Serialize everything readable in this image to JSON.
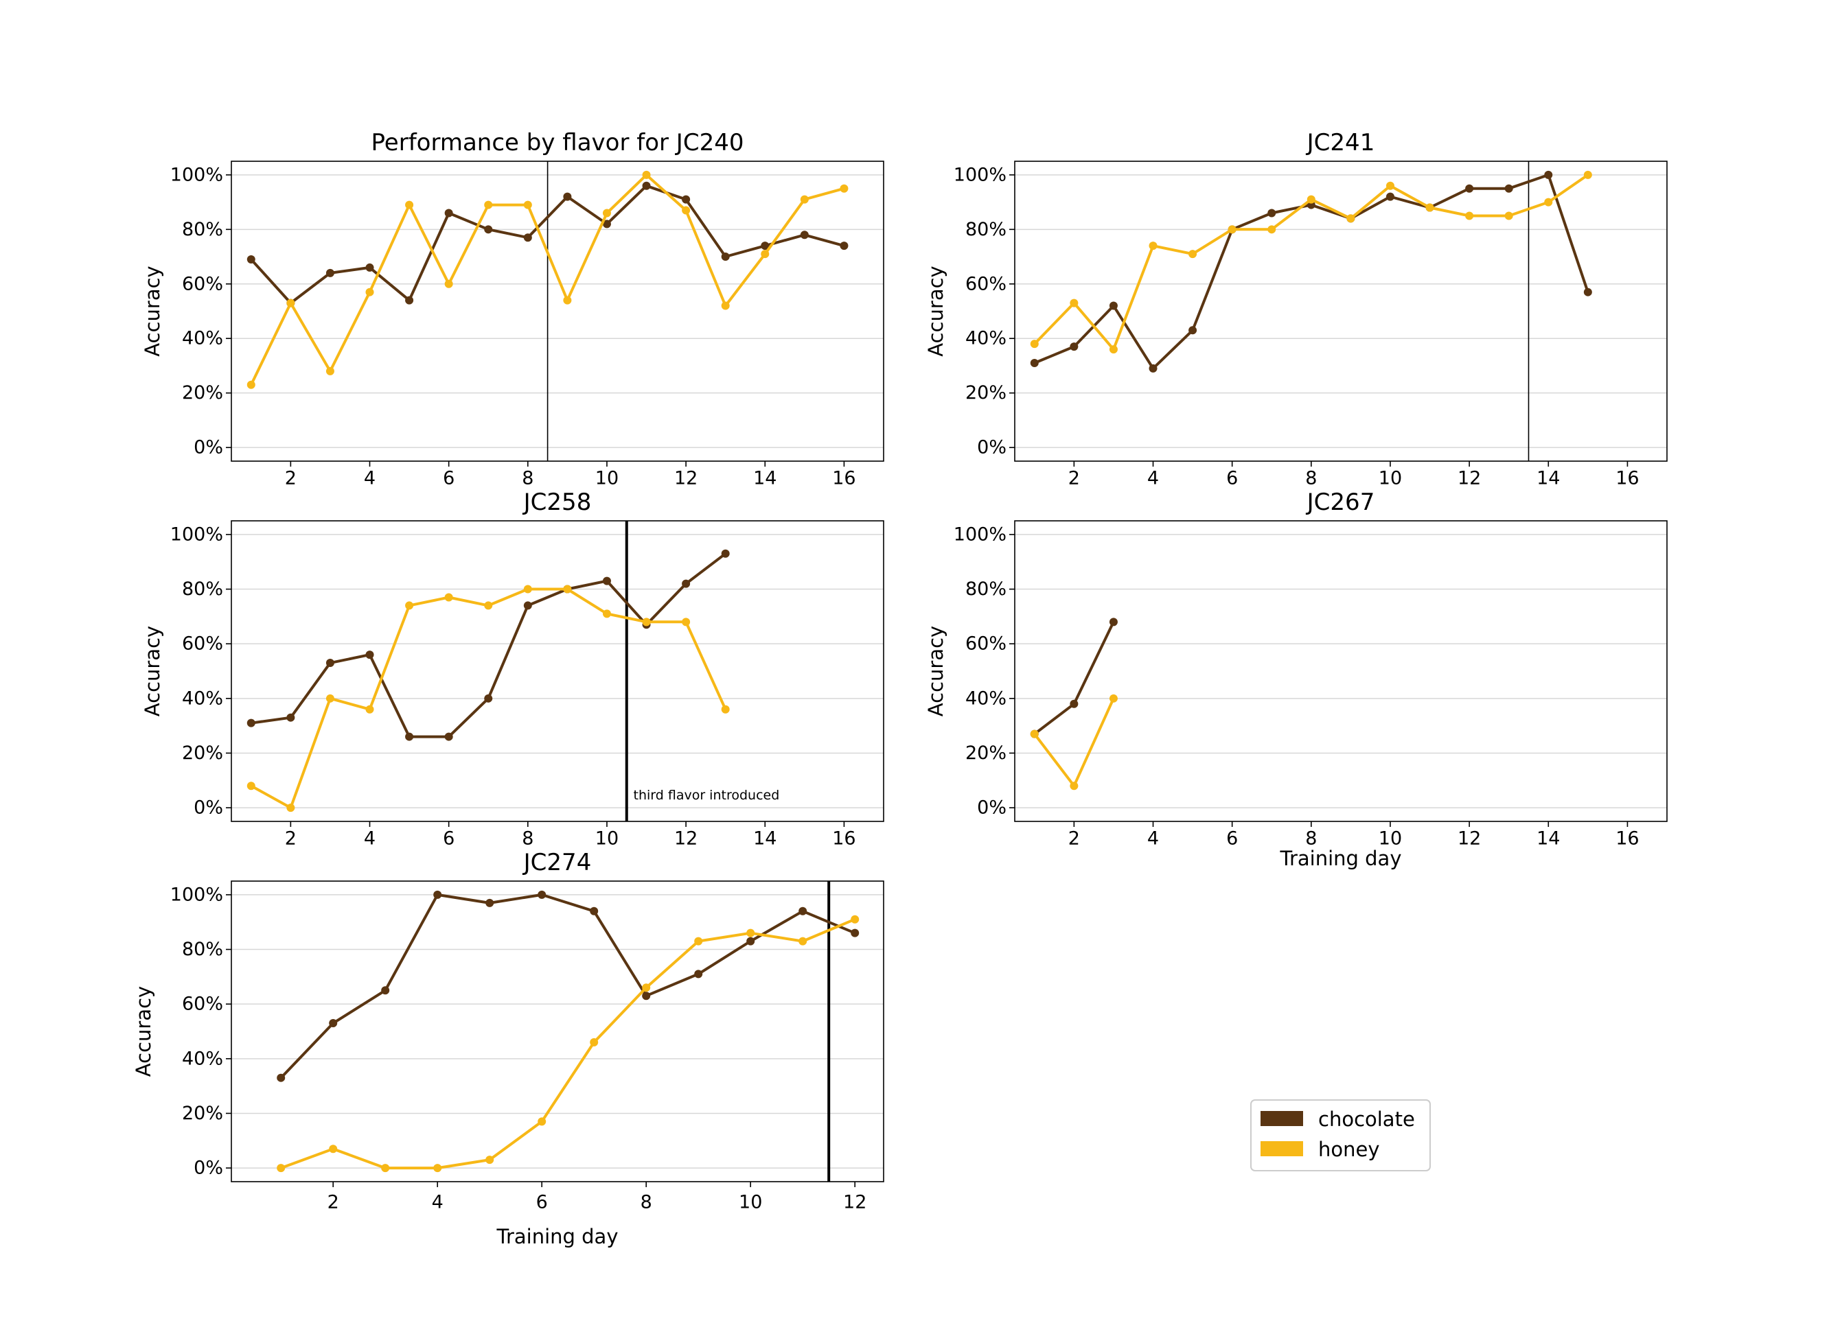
{
  "figure_title": "Performance by flavor for JC240",
  "colors": {
    "chocolate": "#5a3512",
    "honey": "#f7b817",
    "grid": "#d7d7d7"
  },
  "legend": {
    "position": "lower-right",
    "items": [
      {
        "label": "chocolate",
        "color": "#5a3512"
      },
      {
        "label": "honey",
        "color": "#f7b817"
      }
    ]
  },
  "chart_data": [
    {
      "type": "line",
      "title": "Performance by flavor for JC240",
      "xlabel": "",
      "ylabel": "Accuracy",
      "xlim": [
        0.5,
        17
      ],
      "ylim": [
        -5,
        105
      ],
      "xticks": [
        2,
        4,
        6,
        8,
        10,
        12,
        14,
        16
      ],
      "yticks": [
        0,
        20,
        40,
        60,
        80,
        100
      ],
      "ytick_labels": [
        "0%",
        "20%",
        "40%",
        "60%",
        "80%",
        "100%"
      ],
      "vline": 8.5,
      "vline_style": "thin",
      "grid": "horizontal",
      "series": [
        {
          "name": "chocolate",
          "x": [
            1,
            2,
            3,
            4,
            5,
            6,
            7,
            8,
            9,
            10,
            11,
            12,
            13,
            14,
            15,
            16
          ],
          "y": [
            69,
            53,
            64,
            66,
            54,
            86,
            80,
            77,
            92,
            82,
            96,
            91,
            70,
            74,
            78,
            74
          ]
        },
        {
          "name": "honey",
          "x": [
            1,
            2,
            3,
            4,
            5,
            6,
            7,
            8,
            9,
            10,
            11,
            12,
            13,
            14,
            15,
            16
          ],
          "y": [
            23,
            53,
            28,
            57,
            89,
            60,
            89,
            89,
            54,
            86,
            100,
            87,
            52,
            71,
            91,
            95
          ]
        }
      ]
    },
    {
      "type": "line",
      "title": "JC241",
      "xlabel": "",
      "ylabel": "Accuracy",
      "xlim": [
        0.5,
        17
      ],
      "ylim": [
        -5,
        105
      ],
      "xticks": [
        2,
        4,
        6,
        8,
        10,
        12,
        14,
        16
      ],
      "yticks": [
        0,
        20,
        40,
        60,
        80,
        100
      ],
      "ytick_labels": [
        "0%",
        "20%",
        "40%",
        "60%",
        "80%",
        "100%"
      ],
      "vline": 13.5,
      "vline_style": "thin",
      "grid": "horizontal",
      "series": [
        {
          "name": "chocolate",
          "x": [
            1,
            2,
            3,
            4,
            5,
            6,
            7,
            8,
            9,
            10,
            11,
            12,
            13,
            14,
            15
          ],
          "y": [
            31,
            37,
            52,
            29,
            43,
            80,
            86,
            89,
            84,
            92,
            88,
            95,
            95,
            100,
            57
          ]
        },
        {
          "name": "honey",
          "x": [
            1,
            2,
            3,
            4,
            5,
            6,
            7,
            8,
            9,
            10,
            11,
            12,
            13,
            14,
            15
          ],
          "y": [
            38,
            53,
            36,
            74,
            71,
            80,
            80,
            91,
            84,
            96,
            88,
            85,
            85,
            90,
            100
          ]
        }
      ]
    },
    {
      "type": "line",
      "title": "JC258",
      "xlabel": "",
      "ylabel": "Accuracy",
      "xlim": [
        0.5,
        17
      ],
      "ylim": [
        -5,
        105
      ],
      "xticks": [
        2,
        4,
        6,
        8,
        10,
        12,
        14,
        16
      ],
      "yticks": [
        0,
        20,
        40,
        60,
        80,
        100
      ],
      "ytick_labels": [
        "0%",
        "20%",
        "40%",
        "60%",
        "80%",
        "100%"
      ],
      "vline": 10.5,
      "vline_style": "thick",
      "grid": "horizontal",
      "annotation": {
        "text": "third flavor introduced",
        "x": 10.6,
        "y": 3
      },
      "series": [
        {
          "name": "chocolate",
          "x": [
            1,
            2,
            3,
            4,
            5,
            6,
            7,
            8,
            9,
            10,
            11,
            12,
            13
          ],
          "y": [
            31,
            33,
            53,
            56,
            26,
            26,
            40,
            74,
            80,
            83,
            67,
            82,
            93
          ]
        },
        {
          "name": "honey",
          "x": [
            1,
            2,
            3,
            4,
            5,
            6,
            7,
            8,
            9,
            10,
            11,
            12,
            13
          ],
          "y": [
            8,
            0,
            40,
            36,
            74,
            77,
            74,
            80,
            80,
            71,
            68,
            68,
            36
          ]
        }
      ]
    },
    {
      "type": "line",
      "title": "JC267",
      "xlabel": "Training day",
      "ylabel": "Accuracy",
      "xlim": [
        0.5,
        17
      ],
      "ylim": [
        -5,
        105
      ],
      "xticks": [
        2,
        4,
        6,
        8,
        10,
        12,
        14,
        16
      ],
      "yticks": [
        0,
        20,
        40,
        60,
        80,
        100
      ],
      "ytick_labels": [
        "0%",
        "20%",
        "40%",
        "60%",
        "80%",
        "100%"
      ],
      "vline": null,
      "grid": "horizontal",
      "series": [
        {
          "name": "chocolate",
          "x": [
            1,
            2,
            3
          ],
          "y": [
            27,
            38,
            68
          ]
        },
        {
          "name": "honey",
          "x": [
            1,
            2,
            3
          ],
          "y": [
            27,
            8,
            40
          ]
        }
      ]
    },
    {
      "type": "line",
      "title": "JC274",
      "xlabel": "Training day",
      "ylabel": "Accuracy",
      "xlim": [
        0.05,
        12.55
      ],
      "ylim": [
        -5,
        105
      ],
      "xticks": [
        2,
        4,
        6,
        8,
        10,
        12
      ],
      "yticks": [
        0,
        20,
        40,
        60,
        80,
        100
      ],
      "ytick_labels": [
        "0%",
        "20%",
        "40%",
        "60%",
        "80%",
        "100%"
      ],
      "vline": 11.5,
      "vline_style": "thick",
      "grid": "horizontal",
      "series": [
        {
          "name": "chocolate",
          "x": [
            1,
            2,
            3,
            4,
            5,
            6,
            7,
            8,
            9,
            10,
            11,
            12
          ],
          "y": [
            33,
            53,
            65,
            100,
            97,
            100,
            94,
            63,
            71,
            83,
            94,
            86
          ]
        },
        {
          "name": "honey",
          "x": [
            1,
            2,
            3,
            4,
            5,
            6,
            7,
            8,
            9,
            10,
            11,
            12
          ],
          "y": [
            0,
            7,
            0,
            0,
            3,
            17,
            46,
            66,
            83,
            86,
            83,
            91
          ]
        }
      ]
    }
  ]
}
